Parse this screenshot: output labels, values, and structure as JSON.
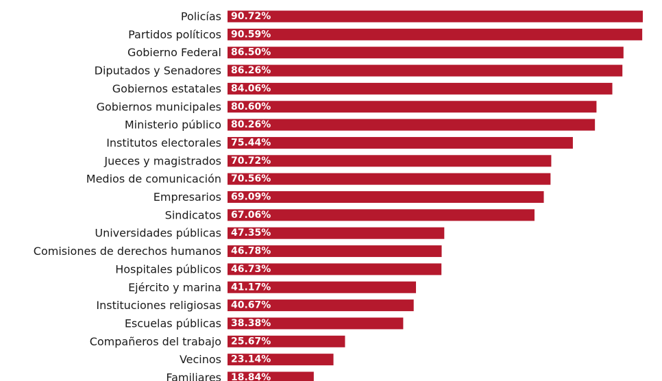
{
  "chart_data": {
    "type": "bar",
    "orientation": "horizontal",
    "categories": [
      "Policías",
      "Partidos políticos",
      "Gobierno Federal",
      "Diputados y Senadores",
      "Gobiernos estatales",
      "Gobiernos municipales",
      "Ministerio público",
      "Institutos electorales",
      "Jueces y magistrados",
      "Medios de comunicación",
      "Empresarios",
      "Sindicatos",
      "Universidades públicas",
      "Comisiones de derechos humanos",
      "Hospitales públicos",
      "Ejército y marina",
      "Instituciones religiosas",
      "Escuelas públicas",
      "Compañeros del trabajo",
      "Vecinos",
      "Familiares"
    ],
    "values": [
      90.72,
      90.59,
      86.5,
      86.26,
      84.06,
      80.6,
      80.26,
      75.44,
      70.72,
      70.56,
      69.09,
      67.06,
      47.35,
      46.78,
      46.73,
      41.17,
      40.67,
      38.38,
      25.67,
      23.14,
      18.84
    ],
    "value_labels": [
      "90.72%",
      "90.59%",
      "86.50%",
      "86.26%",
      "84.06%",
      "80.60%",
      "80.26%",
      "75.44%",
      "70.72%",
      "70.56%",
      "69.09%",
      "67.06%",
      "47.35%",
      "46.78%",
      "46.73%",
      "41.17%",
      "40.67%",
      "38.38%",
      "25.67%",
      "23.14%",
      "18.84%"
    ],
    "title": "",
    "xlabel": "",
    "ylabel": "",
    "bar_color": "#b5192d",
    "value_label_color": "#ffffff",
    "grid": false,
    "legend": "none"
  }
}
